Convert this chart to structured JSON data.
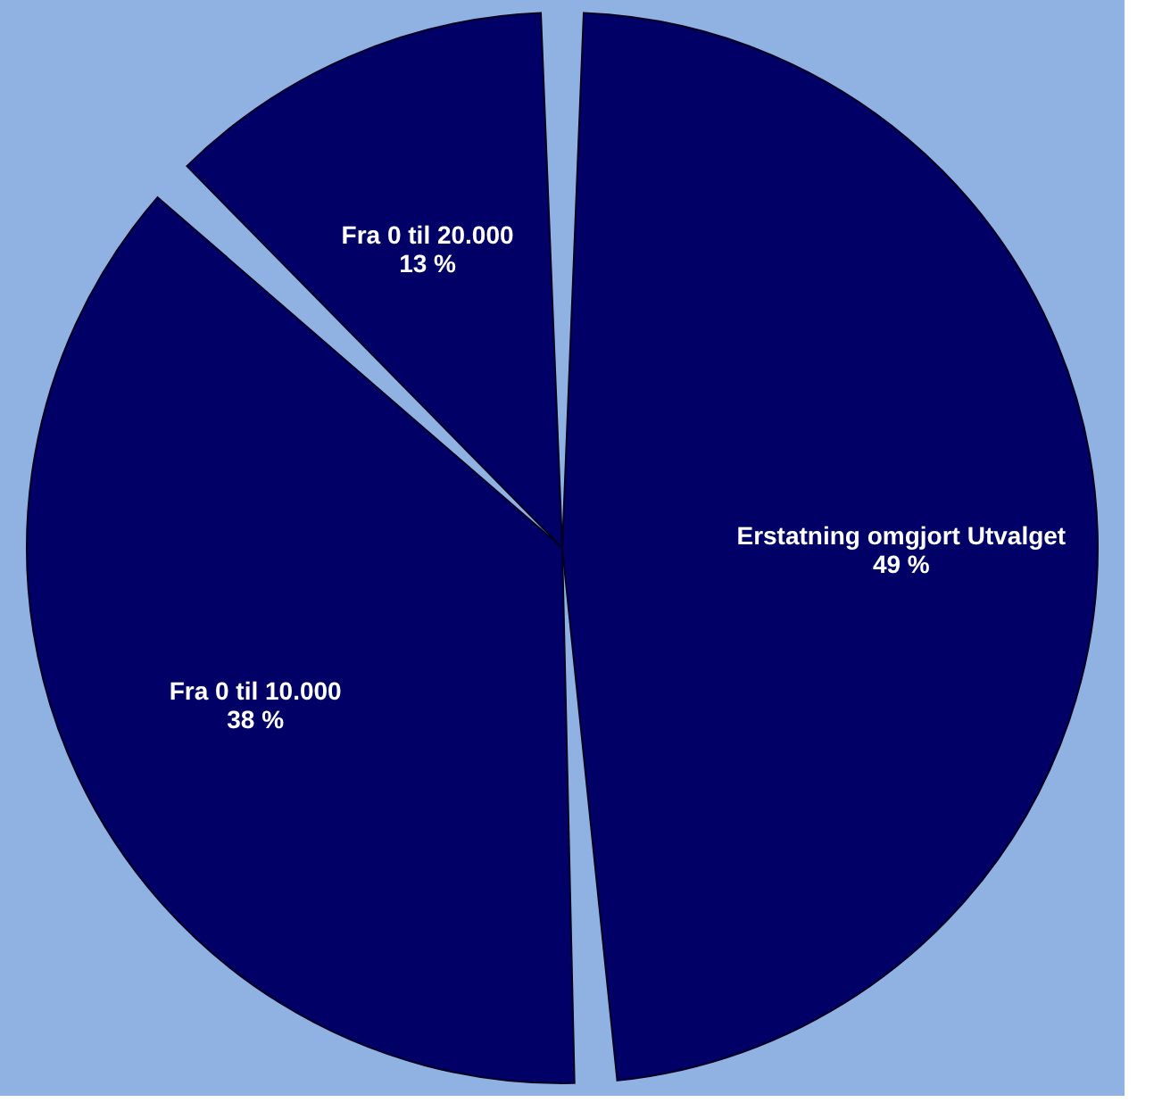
{
  "chart_data": {
    "type": "pie",
    "categories": [
      "Erstatning omgjort Utvalget",
      "Fra 0 til 10.000",
      "Fra 0 til 20.000"
    ],
    "values": [
      49,
      38,
      13
    ],
    "value_labels": [
      "49 %",
      "38 %",
      "13 %"
    ],
    "colors": [
      "#000066",
      "#000066",
      "#000066"
    ],
    "legend": false
  }
}
